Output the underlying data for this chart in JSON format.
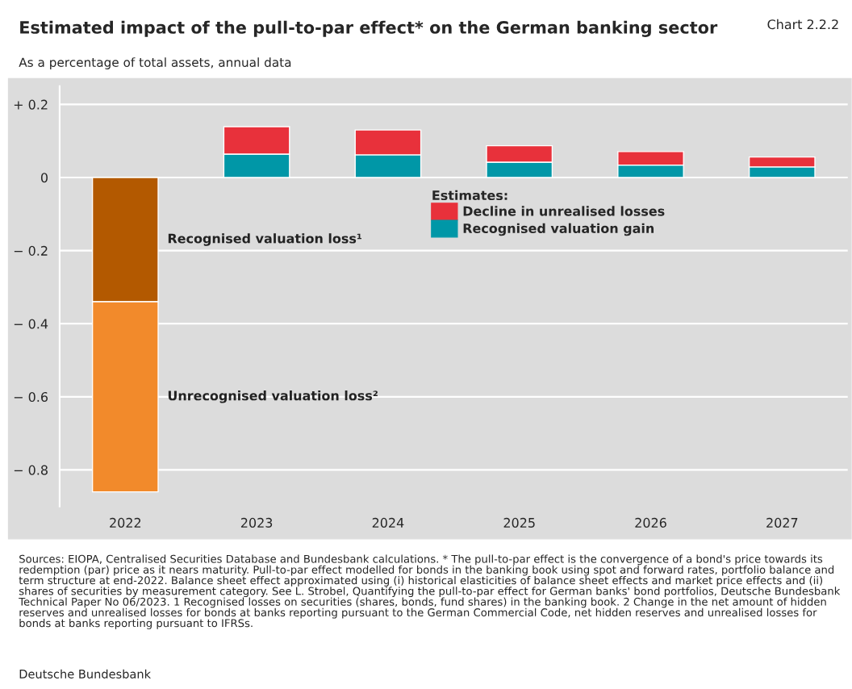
{
  "chart_data": {
    "type": "bar",
    "stacked": true,
    "title": "Estimated impact of the pull-to-par effect* on the German banking sector",
    "subtitle": "As a percentage of total assets, annual data",
    "categories": [
      "2022",
      "2023",
      "2024",
      "2025",
      "2026",
      "2027"
    ],
    "series": [
      {
        "name": "Recognised valuation loss¹",
        "color": "#b35900",
        "values": [
          -0.34,
          null,
          null,
          null,
          null,
          null
        ]
      },
      {
        "name": "Unrecognised valuation loss²",
        "color": "#f28a2b",
        "values": [
          -0.52,
          null,
          null,
          null,
          null,
          null
        ]
      },
      {
        "name": "Recognised valuation gain",
        "color": "#0097a7",
        "values": [
          null,
          0.064,
          0.062,
          0.042,
          0.034,
          0.029
        ]
      },
      {
        "name": "Decline in unrealised losses",
        "color": "#e8313b",
        "values": [
          null,
          0.075,
          0.068,
          0.045,
          0.037,
          0.027
        ]
      }
    ],
    "legend_title": "Estimates:",
    "legend": "top",
    "ylim": [
      -0.9,
      0.25
    ],
    "yticks": [
      {
        "value": 0.2,
        "label": "+ 0.2"
      },
      0,
      {
        "value": -0.2,
        "label": "− 0.2"
      },
      {
        "value": -0.4,
        "label": "− 0.4"
      },
      {
        "value": -0.6,
        "label": "− 0.6"
      },
      {
        "value": -0.8,
        "label": "− 0.8"
      }
    ],
    "grid": "y",
    "annotations": [
      "Chart 2.2.2",
      "Sources: EIOPA, Centralised Securities Database and Bundesbank calculations. * The pull-to-par effect is the convergence of a bond's price towards its redemption (par) price as it nears maturity. Pull-to-par effect modelled for bonds in the banking book using spot and forward rates, portfolio balance and term structure at end-2022. Balance sheet effect approximated using (i) historical elasticities of balance sheet effects and market price effects and (ii) shares of securities by measurement category. See L. Strobel, Quantifying the pull-to-par effect for German banks' bond portfolios, Deutsche Bundesbank Technical Paper No 06/2023. 1 Recognised losses on securities (shares, bonds, fund shares) in the banking book. 2 Change in the net amount of hidden reserves and unrealised losses for bonds at banks reporting pursuant to the German Commercial Code, net hidden reserves and unrealised losses for bonds at banks reporting pursuant to IFRSs.",
      "Deutsche Bundesbank"
    ]
  }
}
